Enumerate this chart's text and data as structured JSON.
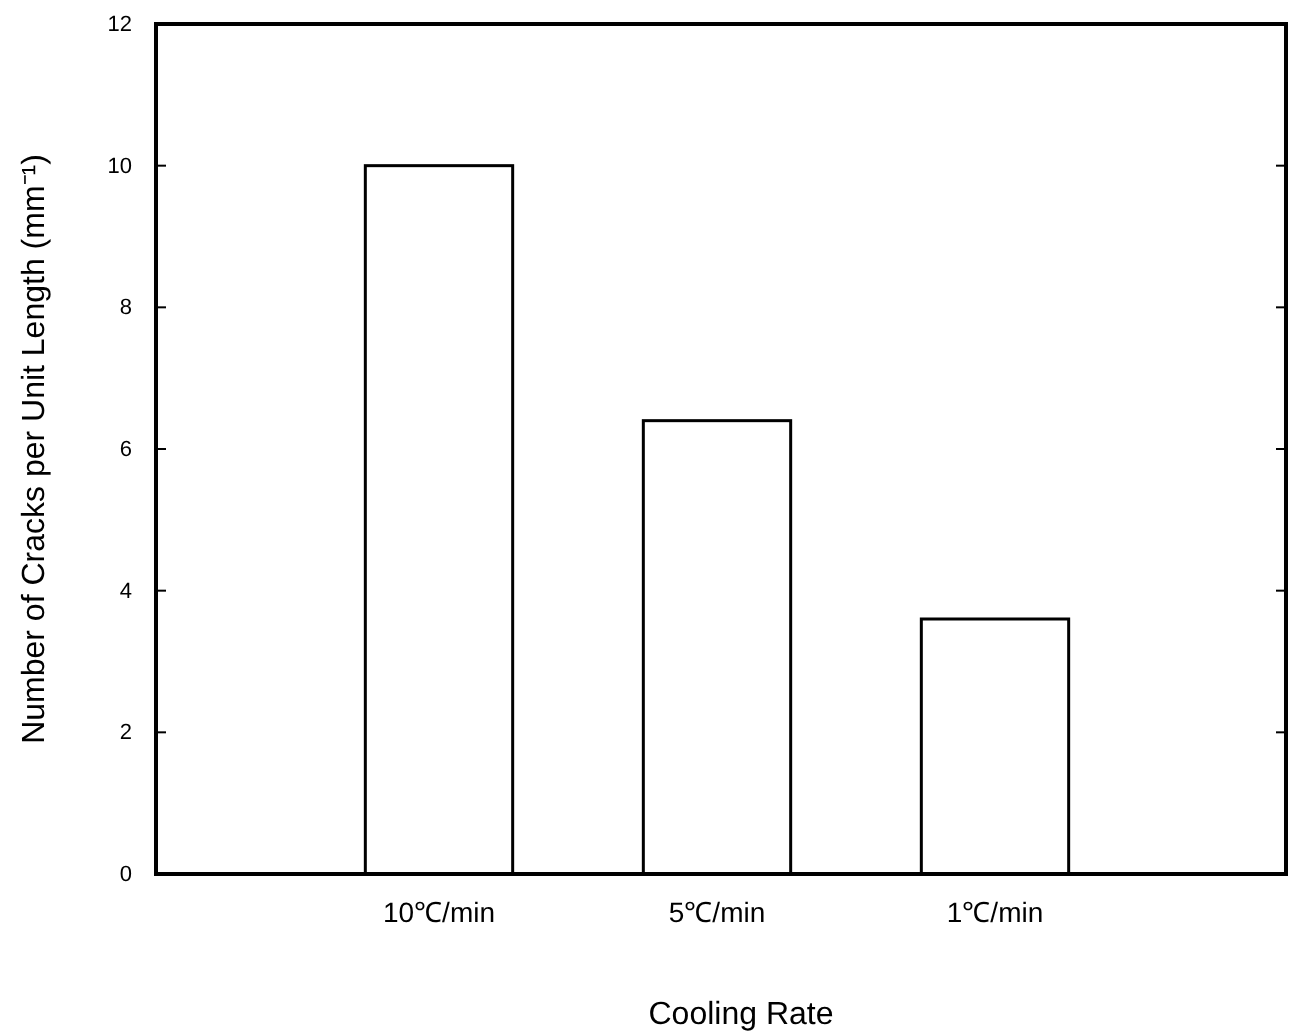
{
  "chart_data": {
    "type": "bar",
    "xlabel": "Cooling Rate",
    "ylabel": "Number of Cracks per Unit Length (mm⁻¹)",
    "categories": [
      "10℃/min",
      "5℃/min",
      "1℃/min"
    ],
    "values": [
      10,
      6.4,
      3.6
    ],
    "color": "#ffffff",
    "ylim": [
      0,
      12
    ],
    "yticks": [
      0,
      2,
      4,
      6,
      8,
      10,
      12
    ],
    "grid": false
  }
}
